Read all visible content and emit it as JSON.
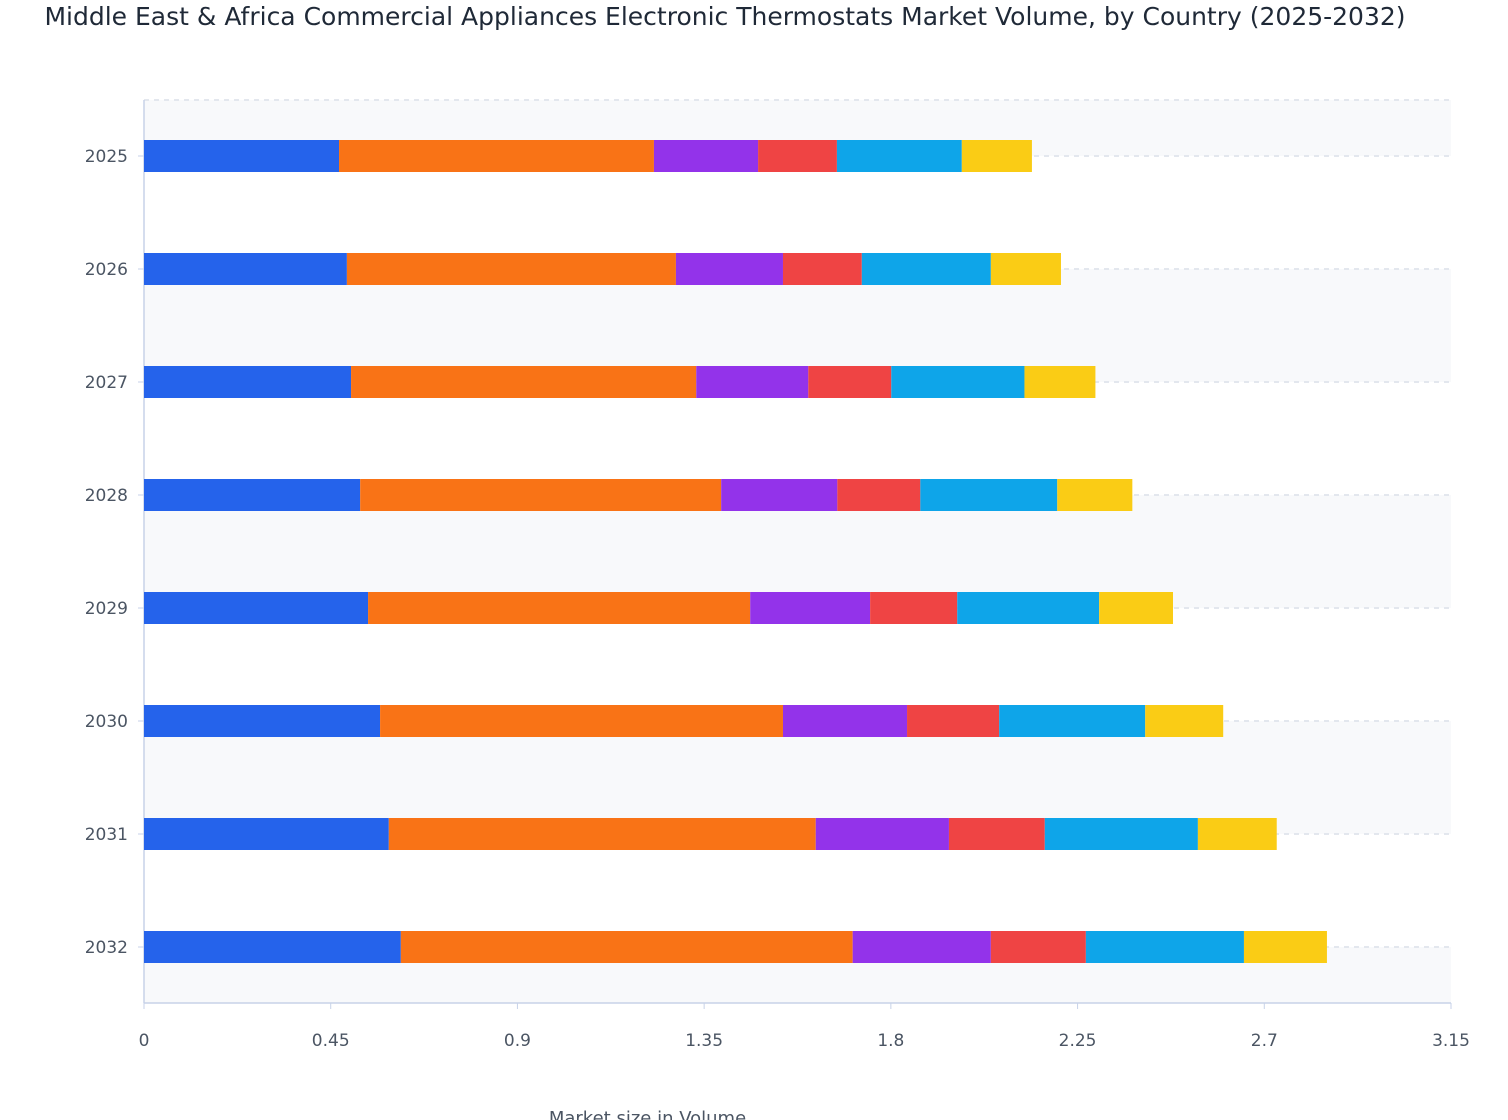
{
  "chart_data": {
    "type": "bar",
    "orientation": "horizontal",
    "stacked": true,
    "title": "Middle East & Africa Commercial Appliances Electronic Thermostats Market Volume, by Country (2025-2032)",
    "xlabel": "Market size in Volume",
    "ylabel": "",
    "xlim": [
      0,
      3.15
    ],
    "xticks": [
      "0",
      "0.45",
      "0.9",
      "1.35",
      "1.8",
      "2.25",
      "2.7",
      "3.15"
    ],
    "categories": [
      "2025",
      "2026",
      "2027",
      "2028",
      "2029",
      "2030",
      "2031",
      "2032"
    ],
    "grid": true,
    "legend": "none",
    "series": [
      {
        "color": "#2563eb",
        "values": [
          0.47,
          0.489,
          0.499,
          0.521,
          0.54,
          0.569,
          0.59,
          0.619
        ]
      },
      {
        "color": "#f97316",
        "values": [
          0.759,
          0.793,
          0.832,
          0.87,
          0.921,
          0.971,
          1.029,
          1.089
        ]
      },
      {
        "color": "#9333ea",
        "values": [
          0.251,
          0.258,
          0.27,
          0.28,
          0.289,
          0.299,
          0.321,
          0.333
        ]
      },
      {
        "color": "#ef4444",
        "values": [
          0.19,
          0.19,
          0.2,
          0.2,
          0.21,
          0.222,
          0.231,
          0.229
        ]
      },
      {
        "color": "#0ea5e9",
        "values": [
          0.301,
          0.311,
          0.321,
          0.33,
          0.342,
          0.352,
          0.369,
          0.381
        ]
      },
      {
        "color": "#facc15",
        "values": [
          0.169,
          0.169,
          0.171,
          0.181,
          0.178,
          0.188,
          0.19,
          0.2
        ]
      }
    ]
  }
}
